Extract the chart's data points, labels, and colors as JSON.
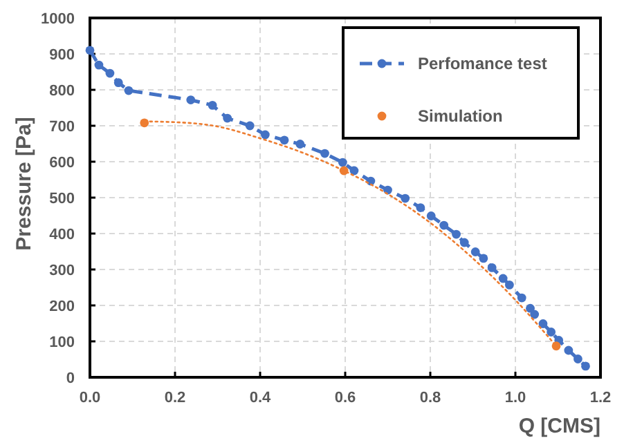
{
  "chart_data": {
    "type": "line",
    "xlabel": "Q [CMS]",
    "ylabel": "Pressure [Pa]",
    "xlim": [
      0,
      1.2
    ],
    "xticks": [
      {
        "value": 0,
        "label": "0.0"
      },
      0.2,
      0.4,
      0.6,
      0.8,
      {
        "value": 1,
        "label": "1.0"
      },
      1.2
    ],
    "ylim": [
      0,
      1000
    ],
    "yticks": [
      0,
      100,
      200,
      300,
      400,
      500,
      600,
      700,
      800,
      900,
      1000
    ],
    "grid": true,
    "legend": "top right",
    "series": [
      {
        "name": "Perfomance test",
        "color": "#4472c4",
        "marker": "circle",
        "line_style": "dashed",
        "x": [
          0,
          0.021,
          0.047,
          0.067,
          0.091,
          0.237,
          0.288,
          0.323,
          0.376,
          0.412,
          0.457,
          0.494,
          0.552,
          0.594,
          0.621,
          0.66,
          0.7,
          0.741,
          0.777,
          0.802,
          0.832,
          0.861,
          0.88,
          0.906,
          0.925,
          0.945,
          0.971,
          0.986,
          1.015,
          1.035,
          1.045,
          1.065,
          1.084,
          1.102,
          1.125,
          1.147,
          1.165
        ],
        "values": [
          910,
          869,
          846,
          820,
          798,
          772,
          757,
          721,
          700,
          675,
          660,
          649,
          623,
          598,
          575,
          546,
          521,
          498,
          472,
          449,
          423,
          398,
          375,
          349,
          331,
          305,
          275,
          257,
          221,
          192,
          175,
          149,
          126,
          103,
          75,
          51,
          31
        ]
      },
      {
        "name": "Simulation",
        "type": "scatter",
        "color": "#ed7d31",
        "marker": "circle",
        "x": [
          0.128,
          0.597,
          1.096
        ],
        "values": [
          708,
          575,
          87
        ]
      },
      {
        "type": "line",
        "color": "#ed7d31",
        "marker": "none",
        "line_style": "dotted",
        "x": [
          0.128,
          0.2,
          0.3,
          0.4,
          0.5,
          0.597,
          0.7,
          0.8,
          0.9,
          1.0,
          1.096
        ],
        "values": [
          712,
          710,
          698,
          665,
          625,
          575,
          510,
          430,
          331,
          215,
          87
        ]
      }
    ]
  }
}
